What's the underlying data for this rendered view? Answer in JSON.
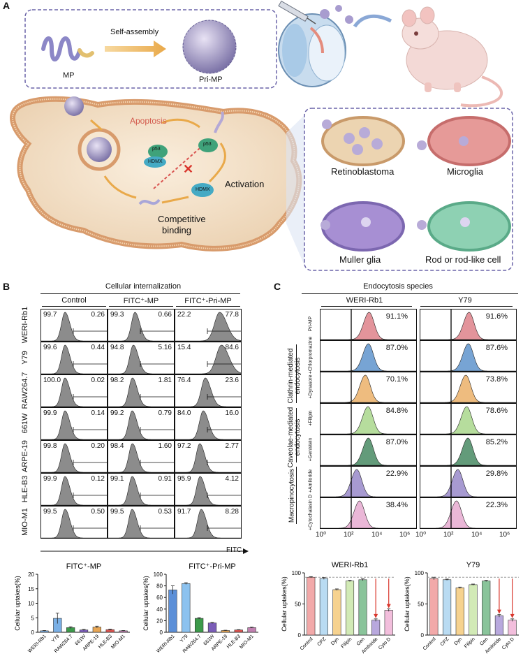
{
  "panelA": {
    "letter": "A",
    "labels": {
      "mp": "MP",
      "self_assembly": "Self-assembly",
      "pri_mp": "Pri-MP",
      "apoptosis": "Apoptosis",
      "p53_1": "p53",
      "hdmx_1": "HDMX",
      "p53_2": "p53",
      "activation": "Activation",
      "hdmx_2": "HDMX",
      "competitive": "Competitive",
      "binding": "binding",
      "retinoblastoma": "Retinoblastoma",
      "microglia": "Microglia",
      "muller": "Muller glia",
      "rod": "Rod or rod-like cell"
    }
  },
  "panelB": {
    "letter": "B",
    "title": "Cellular internalization",
    "columns": [
      "Control",
      "FITC⁺-MP",
      "FITC⁺-Pri-MP"
    ],
    "rows": [
      {
        "cell": "WERI-Rb1",
        "values": [
          [
            "99.7",
            "0.26"
          ],
          [
            "99.3",
            "0.66"
          ],
          [
            "22.2",
            "77.8"
          ]
        ]
      },
      {
        "cell": "Y79",
        "values": [
          [
            "99.6",
            "0.44"
          ],
          [
            "94.8",
            "5.16"
          ],
          [
            "15.4",
            "84.6"
          ]
        ]
      },
      {
        "cell": "RAW264.7",
        "values": [
          [
            "100.0",
            "0.02"
          ],
          [
            "98.2",
            "1.81"
          ],
          [
            "76.4",
            "23.6"
          ]
        ]
      },
      {
        "cell": "661W",
        "values": [
          [
            "99.9",
            "0.14"
          ],
          [
            "99.2",
            "0.79"
          ],
          [
            "84.0",
            "16.0"
          ]
        ]
      },
      {
        "cell": "ARPE-19",
        "values": [
          [
            "99.8",
            "0.20"
          ],
          [
            "98.4",
            "1.60"
          ],
          [
            "97.2",
            "2.77"
          ]
        ]
      },
      {
        "cell": "HLE-B3",
        "values": [
          [
            "99.9",
            "0.12"
          ],
          [
            "99.1",
            "0.91"
          ],
          [
            "95.9",
            "4.12"
          ]
        ]
      },
      {
        "cell": "MIO-M1",
        "values": [
          [
            "99.5",
            "0.50"
          ],
          [
            "99.5",
            "0.53"
          ],
          [
            "91.7",
            "8.28"
          ]
        ]
      }
    ],
    "xaxis_label": "FITC"
  },
  "panelC": {
    "letter": "C",
    "title": "Endocytosis species",
    "columns": [
      "WERI-Rb1",
      "Y79"
    ],
    "rows": [
      {
        "treatment": "Pri-MP",
        "values": [
          "91.1%",
          "91.6%"
        ],
        "color": "#d9707a"
      },
      {
        "treatment": "+Chlorpromazine",
        "values": [
          "87.0%",
          "87.6%"
        ],
        "color": "#4a86c5"
      },
      {
        "treatment": "+Dynasore",
        "values": [
          "70.1%",
          "73.8%"
        ],
        "color": "#e8a654"
      },
      {
        "treatment": "+Filipin",
        "values": [
          "84.8%",
          "78.6%"
        ],
        "color": "#9ed27c"
      },
      {
        "treatment": "+Genistein",
        "values": [
          "87.0%",
          "85.2%"
        ],
        "color": "#2f7a4e"
      },
      {
        "treatment": "+Amiloride",
        "values": [
          "22.9%",
          "29.8%"
        ],
        "color": "#8a78c2"
      },
      {
        "treatment": "+Cytochalasin D",
        "values": [
          "38.4%",
          "22.3%"
        ],
        "color": "#e39fc9"
      }
    ],
    "groups": [
      "Clathrin-mediated endocytosis",
      "Caveolae-mediated endocytosis",
      "Macropinocytosis"
    ],
    "xticks": [
      "10⁰",
      "10²",
      "10⁴",
      "10⁶"
    ]
  },
  "chart_data": [
    {
      "type": "bar",
      "title": "FITC⁺-MP",
      "ylabel": "Cellular uptakes(%)",
      "ylim": [
        0,
        20
      ],
      "yticks": [
        "0",
        "5",
        "10",
        "15",
        "20"
      ],
      "categories": [
        "WERI-Rb1",
        "Y79",
        "RAW264.7",
        "661W",
        "ARPE-19",
        "HLE-B3",
        "MIO-M1"
      ],
      "values": [
        0.5,
        4.8,
        1.6,
        0.8,
        1.8,
        0.9,
        0.5
      ],
      "errors": [
        0.1,
        1.8,
        0.3,
        0.2,
        0.3,
        0.2,
        0.1
      ],
      "colors": [
        "#7ab0e6",
        "#7ab0e6",
        "#3c9a4a",
        "#7b5db8",
        "#e8a654",
        "#d9534f",
        "#c080b0"
      ]
    },
    {
      "type": "bar",
      "title": "FITC⁺-Pri-MP",
      "ylabel": "Cellular uptakes(%)",
      "ylim": [
        0,
        100
      ],
      "yticks": [
        "0",
        "20",
        "40",
        "60",
        "80",
        "100"
      ],
      "categories": [
        "WERI-Rb1",
        "Y79",
        "RAW264.7",
        "661W",
        "ARPE-19",
        "HLE-B3",
        "MIO-M1"
      ],
      "values": [
        73,
        84,
        24,
        16,
        3,
        4,
        8
      ],
      "errors": [
        7,
        1.5,
        1.2,
        1,
        0.5,
        0.5,
        0.8
      ],
      "colors": [
        "#5b8fd8",
        "#8cc2ef",
        "#3c9a4a",
        "#7b5db8",
        "#e8a654",
        "#d9534f",
        "#c080b0"
      ]
    },
    {
      "type": "bar",
      "title": "WERI-Rb1",
      "ylabel": "Cellular uptakes(%)",
      "ylim": [
        0,
        100
      ],
      "yticks": [
        "0",
        "50",
        "100"
      ],
      "categories": [
        "Control",
        "CPZ",
        "Dyn",
        "Filipin",
        "Gen",
        "Amiloride",
        "Cyto D"
      ],
      "values": [
        93,
        91,
        73,
        87,
        89,
        24,
        40
      ],
      "errors": [
        1,
        1.5,
        1.2,
        1,
        1.5,
        2,
        2
      ],
      "colors": [
        "#f2a9a9",
        "#b9dbf2",
        "#f6d28f",
        "#d2eab6",
        "#89c49a",
        "#b8a8dd",
        "#f2bedc"
      ]
    },
    {
      "type": "bar",
      "title": "Y79",
      "ylabel": "Cellular uptakes(%)",
      "ylim": [
        0,
        100
      ],
      "yticks": [
        "0",
        "50",
        "100"
      ],
      "categories": [
        "Control",
        "CPZ",
        "Dyn",
        "Filipin",
        "Gen",
        "Amiloride",
        "Cyto D"
      ],
      "values": [
        91,
        89,
        76,
        81,
        87,
        31,
        24
      ],
      "errors": [
        2,
        1,
        1.2,
        1,
        1,
        2,
        2
      ],
      "colors": [
        "#f2a9a9",
        "#b9dbf2",
        "#f6d28f",
        "#d2eab6",
        "#89c49a",
        "#b8a8dd",
        "#f2bedc"
      ]
    }
  ]
}
